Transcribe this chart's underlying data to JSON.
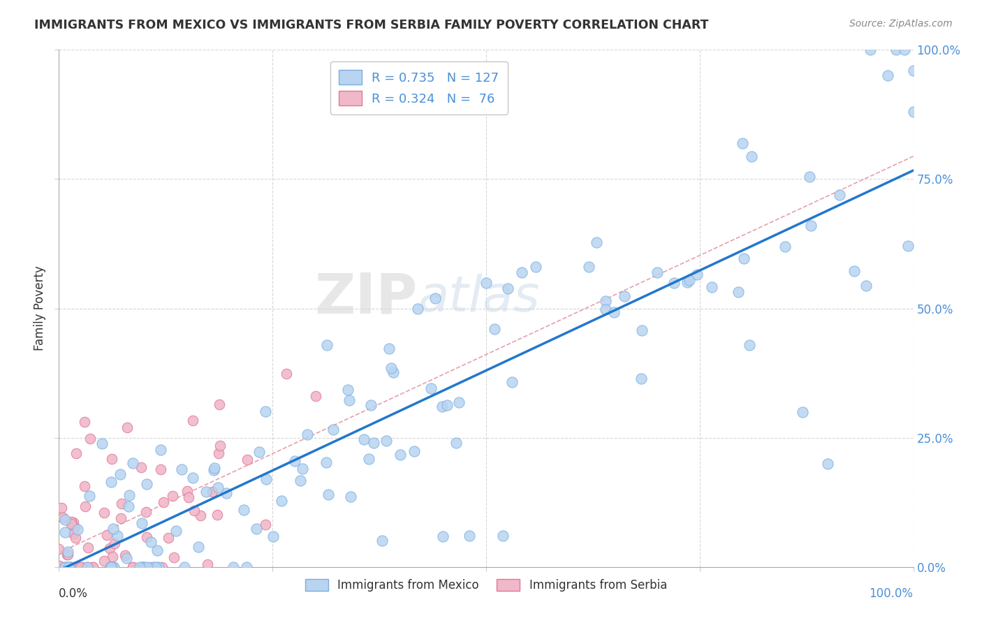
{
  "title": "IMMIGRANTS FROM MEXICO VS IMMIGRANTS FROM SERBIA FAMILY POVERTY CORRELATION CHART",
  "source": "Source: ZipAtlas.com",
  "ylabel": "Family Poverty",
  "mexico_color": "#b8d4f0",
  "mexico_edge_color": "#7aaee0",
  "serbia_color": "#f0b8c8",
  "serbia_edge_color": "#e07898",
  "mexico_R": 0.735,
  "mexico_N": 127,
  "serbia_R": 0.324,
  "serbia_N": 76,
  "regression_mexico_color": "#2277cc",
  "regression_serbia_color": "#e08898",
  "watermark_zip": "ZIP",
  "watermark_atlas": "atlas",
  "legend_label_mexico": "Immigrants from Mexico",
  "legend_label_serbia": "Immigrants from Serbia",
  "right_tick_color": "#4a90d9",
  "ytick_values": [
    0.0,
    0.25,
    0.5,
    0.75,
    1.0
  ],
  "ytick_labels_right": [
    "0.0%",
    "25.0%",
    "50.0%",
    "75.0%",
    "100.0%"
  ]
}
